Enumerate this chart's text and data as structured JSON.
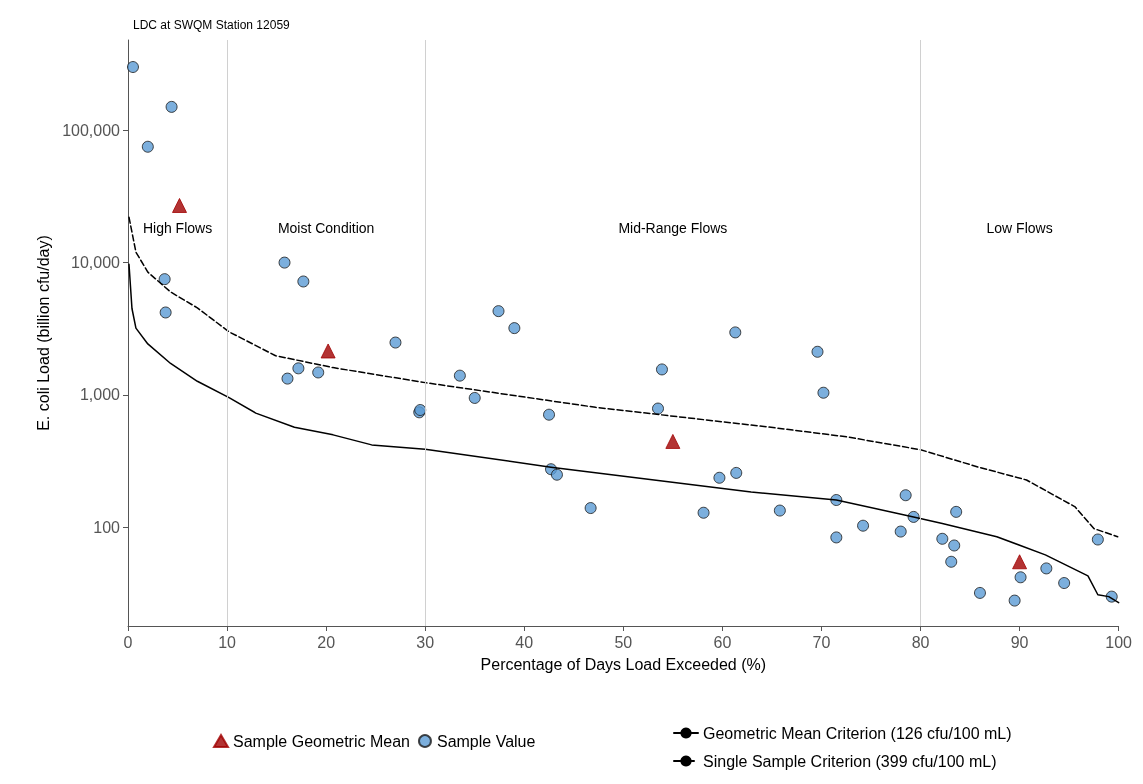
{
  "chart_data": {
    "type": "scatter",
    "title": "LDC at SWQM Station 12059",
    "xlabel": "Percentage of Days Load Exceeded (%)",
    "ylabel": "E. coli Load (billion cfu/day)",
    "log": "y",
    "grid": false,
    "legend": "bottom",
    "xlim": [
      0,
      100
    ],
    "xticks": [
      0,
      10,
      20,
      30,
      40,
      50,
      60,
      70,
      80,
      90,
      100
    ],
    "ylim": [
      18,
      480000
    ],
    "yticks": [
      {
        "value": 100,
        "label": "100"
      },
      {
        "value": 1000,
        "label": "1,000"
      },
      {
        "value": 10000,
        "label": "10,000"
      },
      {
        "value": 100000,
        "label": "100,000"
      }
    ],
    "ref_lines": [
      {
        "axis": "x",
        "value": 10,
        "color": "#d0d0d0"
      },
      {
        "axis": "x",
        "value": 30,
        "color": "#d0d0d0"
      },
      {
        "axis": "x",
        "value": 80,
        "color": "#d0d0d0"
      }
    ],
    "annotations": [
      "High Flows",
      "Moist Condition",
      "Mid-Range Flows",
      "Low Flows"
    ],
    "series": [
      {
        "name": "Sample Geometric Mean",
        "type": "scatter",
        "marker": "triangle",
        "color": "#a00000",
        "x": [
          5.2,
          20.2,
          55.0,
          90.0
        ],
        "values": [
          27000,
          2150,
          446,
          55
        ]
      },
      {
        "name": "Sample Value",
        "type": "scatter",
        "marker": "circle",
        "color": "#5b9bd5",
        "x": [
          0.5,
          4.4,
          2.0,
          3.7,
          3.8,
          15.8,
          17.7,
          16.1,
          17.2,
          19.2,
          27.0,
          29.4,
          29.5,
          33.5,
          35.0,
          37.4,
          39.0,
          42.5,
          42.7,
          43.3,
          46.7,
          53.9,
          53.5,
          61.3,
          59.7,
          61.4,
          58.1,
          69.6,
          70.2,
          65.8,
          71.5,
          71.5,
          74.2,
          78.5,
          78.0,
          79.3,
          83.6,
          82.2,
          83.4,
          83.1,
          86.0,
          89.5,
          90.1,
          92.7,
          94.5,
          97.9,
          99.3
        ],
        "values": [
          300000,
          150000,
          75000,
          7500,
          4200,
          10000,
          7200,
          1330,
          1590,
          1480,
          2490,
          740,
          770,
          1400,
          950,
          4300,
          3200,
          710,
          275,
          250,
          140,
          1560,
          790,
          2970,
          237,
          258,
          129,
          2120,
          1040,
          134,
          161,
          84,
          103,
          175,
          93,
          120,
          131,
          82,
          73,
          55,
          32,
          28,
          42,
          49,
          38,
          81,
          30
        ]
      },
      {
        "name": "Geometric Mean Criterion (126 cfu/100 mL)",
        "type": "line",
        "marker": "none",
        "line_style": "solid",
        "color": "#000000",
        "x": [
          0.1,
          0.4,
          0.8,
          2,
          4.3,
          7,
          10.2,
          12.9,
          16.8,
          20.7,
          24.6,
          30,
          42.7,
          62.9,
          71.5,
          79.3,
          82.2,
          87.7,
          92.6,
          96.9,
          97.9,
          99,
          100
        ],
        "values": [
          9700,
          4500,
          3200,
          2430,
          1730,
          1270,
          955,
          730,
          570,
          500,
          420,
          390,
          285,
          185,
          161,
          120,
          107,
          85,
          62,
          43,
          31,
          30,
          27
        ]
      },
      {
        "name": "Single Sample Criterion (399 cfu/100 mL)",
        "type": "line",
        "marker": "none",
        "line_style": "dashed",
        "color": "#000000",
        "x": [
          0.1,
          0.8,
          2,
          4.3,
          7,
          10.2,
          14.9,
          20.7,
          30,
          47.2,
          64.9,
          72.7,
          80,
          85.8,
          90.7,
          95.6,
          97.5,
          99.9
        ],
        "values": [
          22000,
          12000,
          8470,
          6000,
          4550,
          3000,
          1980,
          1610,
          1240,
          807,
          570,
          481,
          386,
          286,
          228,
          143,
          98,
          85
        ]
      }
    ]
  }
}
